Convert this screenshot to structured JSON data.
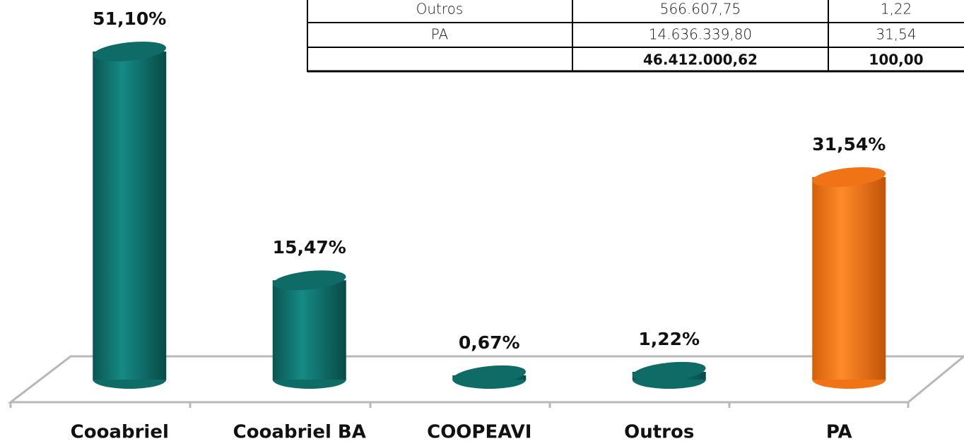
{
  "table": {
    "rows": [
      [
        "Outros",
        "566.607,75",
        "1,22"
      ],
      [
        "PA",
        "14.636.339,80",
        "31,54"
      ]
    ],
    "total": {
      "amount": "46.412.000,62",
      "percent": "100,00"
    }
  },
  "chart_data": {
    "type": "bar",
    "categories": [
      "Cooabriel",
      "Cooabriel BA",
      "COOPEAVI",
      "Outros",
      "PA"
    ],
    "values": [
      51.1,
      15.47,
      0.67,
      1.22,
      31.54
    ],
    "value_labels": [
      "51,10%",
      "15,47%",
      "0,67%",
      "1,22%",
      "31,54%"
    ],
    "colors": [
      "#0e6b66",
      "#0e6b66",
      "#0e6b66",
      "#0e6b66",
      "#f07416"
    ]
  }
}
